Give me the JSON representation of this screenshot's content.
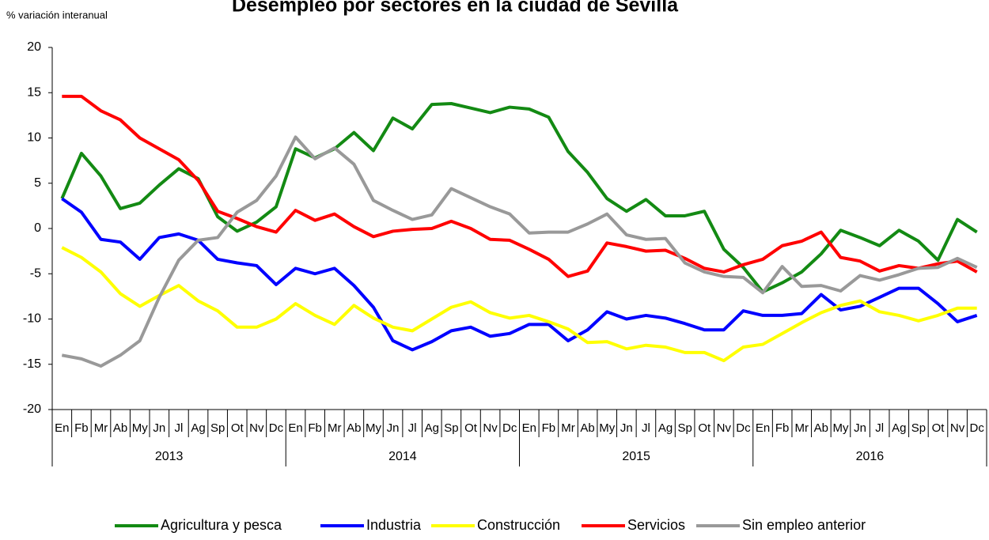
{
  "chart_data": {
    "type": "line",
    "title": "Desempleo por sectores en la ciudad de Sevilla",
    "y_label": "% variación interanual",
    "categories": [
      "En",
      "Fb",
      "Mr",
      "Ab",
      "My",
      "Jn",
      "Jl",
      "Ag",
      "Sp",
      "Ot",
      "Nv",
      "Dc",
      "En",
      "Fb",
      "Mr",
      "Ab",
      "My",
      "Jn",
      "Jl",
      "Ag",
      "Sp",
      "Ot",
      "Nv",
      "Dc",
      "En",
      "Fb",
      "Mr",
      "Ab",
      "My",
      "Jn",
      "Jl",
      "Ag",
      "Sp",
      "Ot",
      "Nv",
      "Dc",
      "En",
      "Fb",
      "Mr",
      "Ab",
      "My",
      "Jn",
      "Jl",
      "Ag",
      "Sp",
      "Ot",
      "Nv",
      "Dc"
    ],
    "years": [
      "2013",
      "2014",
      "2015",
      "2016"
    ],
    "ylim": [
      -20,
      20
    ],
    "yticks": [
      -20,
      -15,
      -10,
      -5,
      0,
      5,
      10,
      15,
      20
    ],
    "grid": false,
    "legend": "bottom",
    "series": [
      {
        "name": "Agricultura y pesca",
        "color": "#138a13",
        "values": [
          3.3,
          8.3,
          5.8,
          2.2,
          2.8,
          4.8,
          6.6,
          5.5,
          1.3,
          -0.3,
          0.7,
          2.4,
          8.8,
          7.8,
          8.8,
          10.6,
          8.6,
          12.2,
          11.0,
          13.7,
          13.8,
          13.3,
          12.8,
          13.4,
          13.2,
          12.3,
          8.5,
          6.2,
          3.3,
          1.9,
          3.2,
          1.4,
          1.4,
          1.9,
          -2.3,
          -4.3,
          -7.0,
          -6.0,
          -4.8,
          -2.8,
          -0.2,
          -1.0,
          -1.9,
          -0.2,
          -1.4,
          -3.5,
          1.0,
          -0.4
        ]
      },
      {
        "name": "Industria",
        "color": "#0000ff",
        "values": [
          3.3,
          1.8,
          -1.2,
          -1.5,
          -3.4,
          -1.0,
          -0.6,
          -1.3,
          -3.4,
          -3.8,
          -4.1,
          -6.2,
          -4.4,
          -5.0,
          -4.4,
          -6.3,
          -8.7,
          -12.4,
          -13.4,
          -12.5,
          -11.3,
          -10.9,
          -11.9,
          -11.6,
          -10.6,
          -10.6,
          -12.4,
          -11.2,
          -9.2,
          -10.0,
          -9.6,
          -9.9,
          -10.5,
          -11.2,
          -11.2,
          -9.1,
          -9.6,
          -9.6,
          -9.4,
          -7.3,
          -9.0,
          -8.6,
          -7.6,
          -6.6,
          -6.6,
          -8.3,
          -10.3,
          -9.6
        ]
      },
      {
        "name": "Construcción",
        "color": "#ffff00",
        "values": [
          -2.1,
          -3.2,
          -4.8,
          -7.2,
          -8.6,
          -7.4,
          -6.3,
          -8.0,
          -9.1,
          -10.9,
          -10.9,
          -10.0,
          -8.3,
          -9.6,
          -10.6,
          -8.5,
          -9.9,
          -10.9,
          -11.3,
          -10.0,
          -8.7,
          -8.1,
          -9.3,
          -9.9,
          -9.6,
          -10.3,
          -11.1,
          -12.6,
          -12.5,
          -13.3,
          -12.9,
          -13.1,
          -13.7,
          -13.7,
          -14.6,
          -13.1,
          -12.8,
          -11.6,
          -10.4,
          -9.3,
          -8.5,
          -8.0,
          -9.2,
          -9.6,
          -10.2,
          -9.6,
          -8.8,
          -8.8
        ]
      },
      {
        "name": "Servicios",
        "color": "#ff0000",
        "values": [
          14.6,
          14.6,
          13.0,
          12.0,
          10.0,
          8.8,
          7.6,
          5.3,
          1.9,
          1.1,
          0.2,
          -0.4,
          2.0,
          0.9,
          1.6,
          0.2,
          -0.9,
          -0.3,
          -0.1,
          0.0,
          0.8,
          0.0,
          -1.2,
          -1.3,
          -2.3,
          -3.4,
          -5.3,
          -4.7,
          -1.6,
          -2.0,
          -2.5,
          -2.4,
          -3.3,
          -4.4,
          -4.8,
          -4.0,
          -3.4,
          -1.9,
          -1.4,
          -0.4,
          -3.2,
          -3.6,
          -4.7,
          -4.1,
          -4.4,
          -3.9,
          -3.6,
          -4.8
        ]
      },
      {
        "name": "Sin empleo anterior",
        "color": "#999999",
        "values": [
          -14.0,
          -14.4,
          -15.2,
          -14.0,
          -12.4,
          -7.6,
          -3.5,
          -1.3,
          -1.0,
          1.8,
          3.1,
          5.8,
          10.1,
          7.7,
          8.9,
          7.1,
          3.1,
          2.0,
          1.0,
          1.5,
          4.4,
          3.4,
          2.4,
          1.6,
          -0.5,
          -0.4,
          -0.4,
          0.5,
          1.6,
          -0.7,
          -1.2,
          -1.1,
          -3.8,
          -4.8,
          -5.3,
          -5.4,
          -7.1,
          -4.2,
          -6.4,
          -6.3,
          -6.9,
          -5.2,
          -5.7,
          -5.1,
          -4.4,
          -4.3,
          -3.3,
          -4.3
        ]
      }
    ]
  }
}
